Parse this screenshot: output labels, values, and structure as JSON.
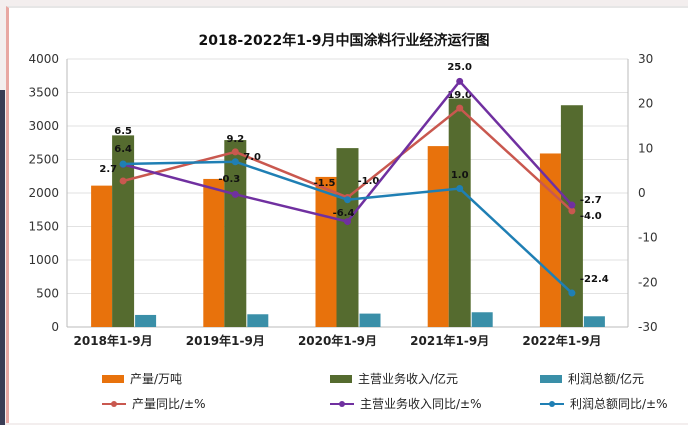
{
  "chart_data": {
    "type": "bar",
    "title": "2018-2022年1-9月中国涂料行业经济运行图",
    "categories": [
      "2018年1-9月",
      "2019年1-9月",
      "2020年1-9月",
      "2021年1-9月",
      "2022年1-9月"
    ],
    "ylim_left": [
      0,
      4000
    ],
    "yticks_left": [
      0,
      500,
      1000,
      1500,
      2000,
      2500,
      3000,
      3500,
      4000
    ],
    "ylim_right": [
      -30,
      30
    ],
    "yticks_right": [
      -30,
      -20,
      -10,
      0,
      10,
      20,
      30
    ],
    "grid": true,
    "legend_placement": "bottom",
    "bar_series": [
      {
        "name": "产量/万吨",
        "color": "#e8720c",
        "values": [
          2110,
          2210,
          2240,
          2700,
          2590
        ]
      },
      {
        "name": "主营业务收入/亿元",
        "color": "#556b2f",
        "values": [
          2860,
          2790,
          2670,
          3410,
          3310
        ]
      },
      {
        "name": "利润总额/亿元",
        "color": "#3a8fa8",
        "values": [
          180,
          190,
          200,
          220,
          160
        ]
      }
    ],
    "line_series": [
      {
        "name": "产量同比/±%",
        "color": "#c9584f",
        "values": [
          2.7,
          9.2,
          -1.0,
          19.0,
          -4.0
        ]
      },
      {
        "name": "主营业务收入同比/±%",
        "color": "#7030a0",
        "values": [
          6.4,
          -0.3,
          -6.4,
          25.0,
          -2.7
        ]
      },
      {
        "name": "利润总额同比/±%",
        "color": "#1f7fb4",
        "values": [
          6.5,
          7.0,
          -1.5,
          1.0,
          -22.4
        ]
      }
    ]
  }
}
